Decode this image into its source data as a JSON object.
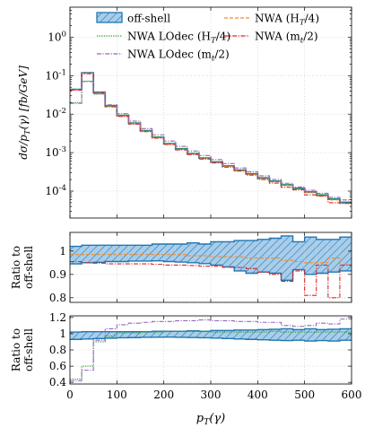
{
  "chart_data": {
    "type": "line",
    "x_axis": {
      "label": "p_T(γ)",
      "range": [
        0,
        600
      ],
      "ticks": [
        0,
        100,
        200,
        300,
        400,
        500,
        600
      ],
      "tick_labels": [
        "0",
        "100",
        "200",
        "300",
        "400",
        "500",
        "600"
      ]
    },
    "bin_edges": [
      0,
      25,
      50,
      75,
      100,
      125,
      150,
      175,
      200,
      225,
      250,
      275,
      300,
      325,
      350,
      375,
      400,
      425,
      450,
      475,
      500,
      525,
      550,
      575,
      600
    ],
    "legend": {
      "placement": "top",
      "entries": [
        {
          "key": "offshell",
          "label": "off-shell"
        },
        {
          "key": "nwa_ht4",
          "label": "NWA (H_T/4)"
        },
        {
          "key": "nwalo_ht4",
          "label": "NWA LOdec (H_T/4)"
        },
        {
          "key": "nwa_mt2",
          "label": "NWA (m_t/2)"
        },
        {
          "key": "nwalo_mt2",
          "label": "NWA LOdec (m_t/2)"
        }
      ]
    },
    "colors": {
      "offshell": "#1f77b4",
      "offshell_fill": "#a9cde9",
      "nwa_ht4": "#f28c28",
      "nwalo_ht4": "#2ca02c",
      "nwa_mt2": "#d62728",
      "nwalo_mt2": "#9467bd"
    },
    "panels": [
      {
        "name": "main",
        "ylabel": "dσ/p_T(γ) [fb/GeV]",
        "yscale": "log",
        "ylim": [
          2e-05,
          6
        ],
        "ticks": [
          0.0001,
          0.001,
          0.01,
          0.1,
          1
        ],
        "tick_labels": [
          "10^-4",
          "10^-3",
          "10^-2",
          "10^-1",
          "10^0"
        ],
        "series": [
          {
            "key": "offshell",
            "values": [
              0.044,
              0.118,
              0.037,
              0.0165,
              0.0092,
              0.0058,
              0.0037,
              0.0025,
              0.0017,
              0.00125,
              0.00094,
              0.00072,
              0.00057,
              0.00045,
              0.00035,
              0.00028,
              0.00022,
              0.00018,
              0.000145,
              0.000118,
              9.5e-05,
              7.9e-05,
              6.2e-05,
              5.1e-05
            ]
          },
          {
            "key": "nwa_ht4",
            "values": [
              0.043,
              0.116,
              0.036,
              0.016,
              0.009,
              0.0057,
              0.0036,
              0.00245,
              0.00167,
              0.00122,
              0.00092,
              0.0007,
              0.00055,
              0.00044,
              0.00034,
              0.00027,
              0.00021,
              0.000175,
              0.00014,
              0.000112,
              9.1e-05,
              7.5e-05,
              5.9e-05,
              4.8e-05
            ]
          },
          {
            "key": "nwalo_ht4",
            "values": [
              0.02,
              0.072,
              0.033,
              0.0162,
              0.0094,
              0.006,
              0.0038,
              0.00258,
              0.00176,
              0.00129,
              0.00097,
              0.00074,
              0.00058,
              0.00046,
              0.00036,
              0.00029,
              0.000225,
              0.000185,
              0.000148,
              0.00012,
              9.7e-05,
              8.1e-05,
              6.4e-05,
              5.2e-05
            ]
          },
          {
            "key": "nwa_mt2",
            "values": [
              0.042,
              0.112,
              0.035,
              0.0155,
              0.0087,
              0.0055,
              0.0035,
              0.00238,
              0.00162,
              0.00118,
              0.00089,
              0.00068,
              0.00054,
              0.00042,
              0.00033,
              0.00026,
              0.0002,
              0.000162,
              0.000126,
              0.000108,
              8e-05,
              7.4e-05,
              5e-05,
              4.8e-05
            ]
          },
          {
            "key": "nwalo_mt2",
            "values": [
              0.019,
              0.07,
              0.034,
              0.0175,
              0.0103,
              0.0066,
              0.0042,
              0.0029,
              0.002,
              0.00146,
              0.0011,
              0.00084,
              0.00066,
              0.00052,
              0.0004,
              0.00032,
              0.00025,
              0.0002,
              0.00016,
              0.000128,
              0.000105,
              8.8e-05,
              6.9e-05,
              5.9e-05
            ]
          }
        ]
      },
      {
        "name": "ratio1",
        "ylabel_lines": [
          "Ratio to",
          "off-shell"
        ],
        "ylim": [
          0.78,
          1.08
        ],
        "ticks": [
          0.8,
          0.9,
          1.0
        ],
        "tick_labels": [
          "0.8",
          "0.9",
          "1"
        ],
        "offshell_band": {
          "low": [
            0.945,
            0.95,
            0.952,
            0.955,
            0.955,
            0.957,
            0.957,
            0.958,
            0.955,
            0.953,
            0.95,
            0.946,
            0.94,
            0.932,
            0.915,
            0.905,
            0.91,
            0.905,
            0.875,
            0.92,
            0.9,
            0.905,
            0.91,
            0.915
          ],
          "high": [
            1.02,
            1.025,
            1.025,
            1.025,
            1.025,
            1.025,
            1.025,
            1.03,
            1.03,
            1.03,
            1.035,
            1.03,
            1.04,
            1.04,
            1.045,
            1.045,
            1.05,
            1.055,
            1.065,
            1.04,
            1.06,
            1.05,
            1.05,
            1.06
          ]
        },
        "series": [
          {
            "key": "nwa_ht4",
            "values": [
              0.985,
              0.985,
              0.985,
              0.985,
              0.985,
              0.985,
              0.985,
              0.985,
              0.985,
              0.985,
              0.98,
              0.98,
              0.975,
              0.975,
              0.975,
              0.97,
              0.97,
              0.97,
              0.96,
              0.955,
              0.95,
              0.95,
              0.97,
              0.94
            ]
          },
          {
            "key": "nwa_mt2",
            "values": [
              0.955,
              0.95,
              0.948,
              0.945,
              0.945,
              0.945,
              0.945,
              0.943,
              0.94,
              0.94,
              0.938,
              0.935,
              0.935,
              0.93,
              0.93,
              0.925,
              0.91,
              0.9,
              0.87,
              0.915,
              0.81,
              0.94,
              0.8,
              0.94
            ]
          }
        ]
      },
      {
        "name": "ratio2",
        "ylabel_lines": [
          "Ratio to",
          "off-shell"
        ],
        "ylim": [
          0.38,
          1.22
        ],
        "ticks": [
          0.4,
          0.6,
          0.8,
          1.0,
          1.2
        ],
        "tick_labels": [
          "0.4",
          "0.6",
          "0.8",
          "1",
          "1.2"
        ],
        "offshell_band": {
          "low": [
            0.93,
            0.935,
            0.94,
            0.945,
            0.95,
            0.952,
            0.955,
            0.957,
            0.958,
            0.955,
            0.953,
            0.95,
            0.946,
            0.94,
            0.935,
            0.93,
            0.925,
            0.92,
            0.915,
            0.92,
            0.91,
            0.915,
            0.91,
            0.92
          ],
          "high": [
            1.02,
            1.025,
            1.025,
            1.025,
            1.025,
            1.025,
            1.025,
            1.03,
            1.03,
            1.03,
            1.035,
            1.03,
            1.04,
            1.04,
            1.045,
            1.045,
            1.05,
            1.055,
            1.06,
            1.05,
            1.06,
            1.05,
            1.055,
            1.06
          ]
        },
        "series": [
          {
            "key": "nwalo_ht4",
            "values": [
              0.44,
              0.6,
              0.9,
              0.97,
              1.01,
              1.01,
              1.02,
              1.02,
              1.03,
              1.03,
              1.03,
              1.03,
              1.02,
              1.02,
              1.02,
              1.02,
              1.02,
              1.03,
              1.02,
              1.02,
              1.02,
              1.02,
              1.02,
              1.02
            ]
          },
          {
            "key": "nwalo_mt2",
            "values": [
              0.42,
              0.55,
              0.92,
              1.06,
              1.11,
              1.13,
              1.14,
              1.15,
              1.15,
              1.16,
              1.16,
              1.17,
              1.16,
              1.16,
              1.15,
              1.15,
              1.14,
              1.14,
              1.1,
              1.09,
              1.1,
              1.13,
              1.12,
              1.18
            ]
          }
        ]
      }
    ]
  }
}
